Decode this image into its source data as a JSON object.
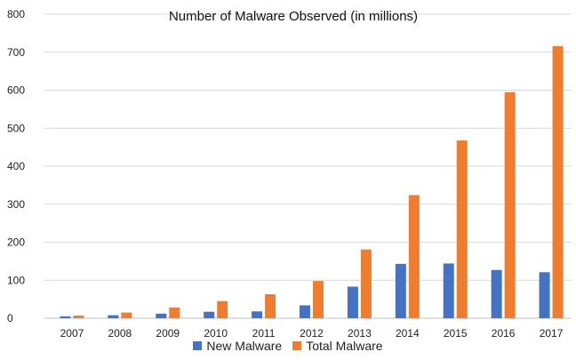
{
  "chart_data": {
    "type": "bar",
    "title": "Number of Malware Observed (in millions)",
    "xlabel": "",
    "ylabel": "",
    "categories": [
      "2007",
      "2008",
      "2009",
      "2010",
      "2011",
      "2012",
      "2013",
      "2014",
      "2015",
      "2016",
      "2017"
    ],
    "series": [
      {
        "name": "New Malware",
        "color": "#4472C4",
        "values": [
          5,
          8,
          12,
          17,
          18,
          34,
          83,
          143,
          144,
          127,
          121
        ]
      },
      {
        "name": "Total Malware",
        "color": "#ED7D31",
        "values": [
          7,
          15,
          28,
          45,
          63,
          98,
          181,
          324,
          468,
          595,
          716
        ]
      }
    ],
    "ylim": [
      0,
      800
    ],
    "yticks": [
      "0",
      "100",
      "200",
      "300",
      "400",
      "500",
      "600",
      "700",
      "800"
    ],
    "grid": true,
    "legend_position": "bottom"
  }
}
